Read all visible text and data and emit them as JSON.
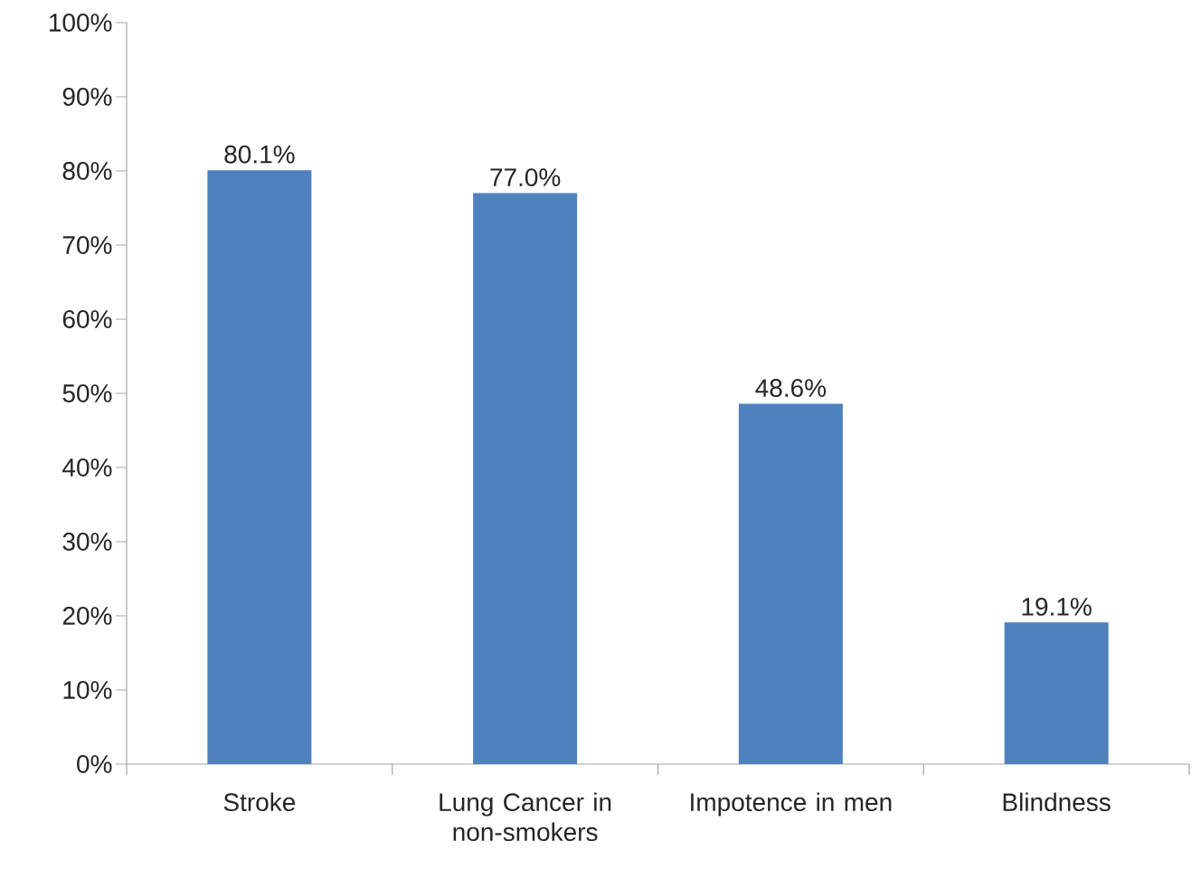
{
  "chart_data": {
    "type": "bar",
    "categories": [
      "Stroke",
      "Lung Cancer in non-smokers",
      "Impotence in men",
      "Blindness"
    ],
    "values": [
      80.1,
      77.0,
      48.6,
      19.1
    ],
    "value_labels": [
      "80.1%",
      "77.0%",
      "48.6%",
      "19.1%"
    ],
    "color": "#4f81bd",
    "ylim": [
      0,
      100
    ],
    "yticks": [
      {
        "value": 0,
        "label": "0%"
      },
      {
        "value": 10,
        "label": "10%"
      },
      {
        "value": 20,
        "label": "20%"
      },
      {
        "value": 30,
        "label": "30%"
      },
      {
        "value": 40,
        "label": "40%"
      },
      {
        "value": 50,
        "label": "50%"
      },
      {
        "value": 60,
        "label": "60%"
      },
      {
        "value": 70,
        "label": "70%"
      },
      {
        "value": 80,
        "label": "80%"
      },
      {
        "value": 90,
        "label": "90%"
      },
      {
        "value": 100,
        "label": "100%"
      }
    ],
    "grid": false
  }
}
